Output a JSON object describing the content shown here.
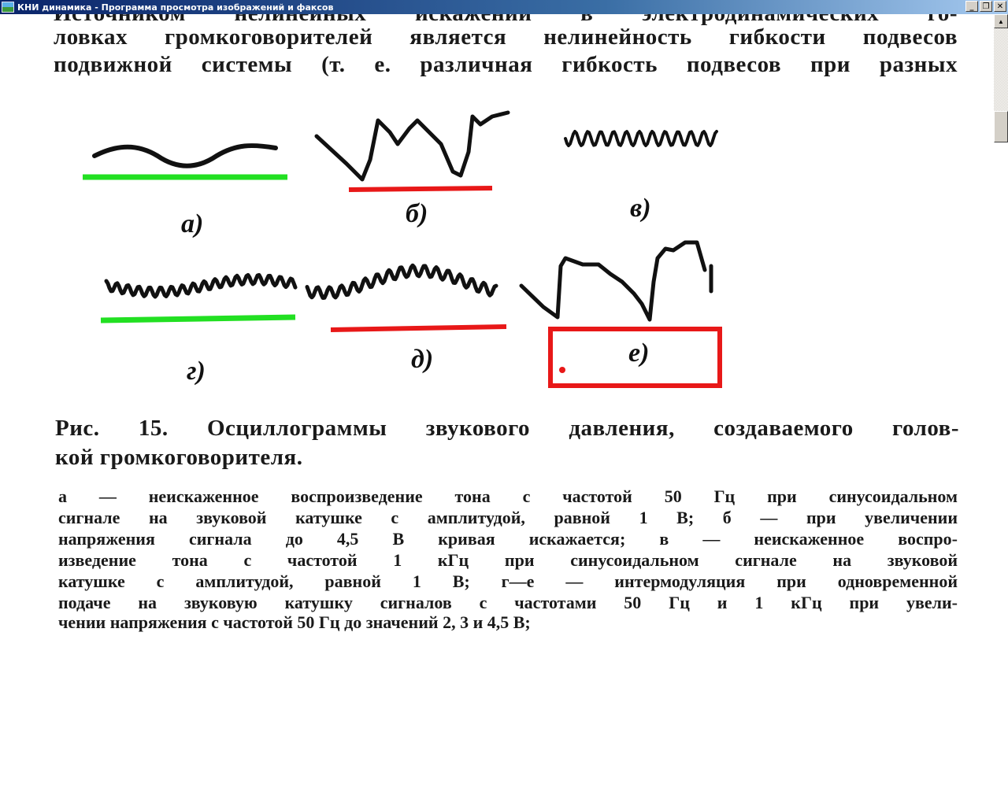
{
  "window": {
    "title": "КНИ  динамика - Программа просмотра изображений и факсов",
    "buttons": {
      "minimize": "_",
      "restore": "❐",
      "close": "✕"
    }
  },
  "document": {
    "body_lines": [
      "Источником нелинейных искажений в электродинамических го-",
      "ловках громкоговорителей является нелинейность гибкости подвесов",
      "подвижной системы (т. е. различная гибкость подвесов при разных"
    ],
    "figure_labels": [
      "а)",
      "б)",
      "в)",
      "г)",
      "д)",
      "е)"
    ],
    "marker_colors": {
      "green": "#22e022",
      "red": "#e81818"
    },
    "caption_lines": [
      "Рис. 15. Осциллограммы звукового давления, создаваемого голов-",
      "кой громкоговорителя."
    ],
    "description_lines": [
      "а — неискаженное воспроизведение тона с частотой 50 Гц при синусоидальном",
      "сигнале на звуковой катушке с амплитудой, равной 1 В; б — при увеличении",
      "напряжения сигнала до 4,5 В кривая искажается; в — неискаженное воспро-",
      "изведение тона с частотой 1 кГц при синусоидальном  сигнале на звуковой",
      "катушке с амплитудой, равной 1 В; г—е — интермодуляция при одновременной",
      "подаче на звуковую катушку сигналов с частотами 50 Гц и 1 кГц при увели-",
      "чении напряжения с частотой 50 Гц до значений 2, 3 и 4,5 В;"
    ]
  }
}
